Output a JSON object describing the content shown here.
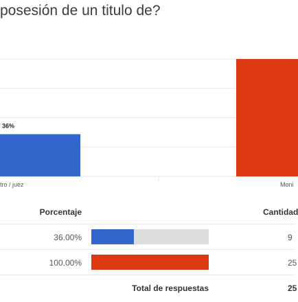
{
  "question": {
    "title": "posesión de un titulo de?"
  },
  "chart_data": {
    "type": "bar",
    "categories": [
      "tro / juez",
      "Moni"
    ],
    "values": [
      36,
      100
    ],
    "data_labels": [
      "36%",
      ""
    ],
    "colors": [
      "#3366cc",
      "#dc3912"
    ],
    "ylim": [
      0,
      100
    ],
    "grid": true,
    "title": "",
    "xlabel": "",
    "ylabel": ""
  },
  "table": {
    "header_percentage": "Porcentaje",
    "header_count": "Cantidad",
    "rows": [
      {
        "percent_text": "36.00%",
        "fraction": 0.36,
        "count": "9",
        "color": "#3366cc"
      },
      {
        "percent_text": "100.00%",
        "fraction": 1.0,
        "count": "25",
        "color": "#dc3912"
      }
    ],
    "total_label": "Total de respuestas",
    "total_value": "25"
  }
}
